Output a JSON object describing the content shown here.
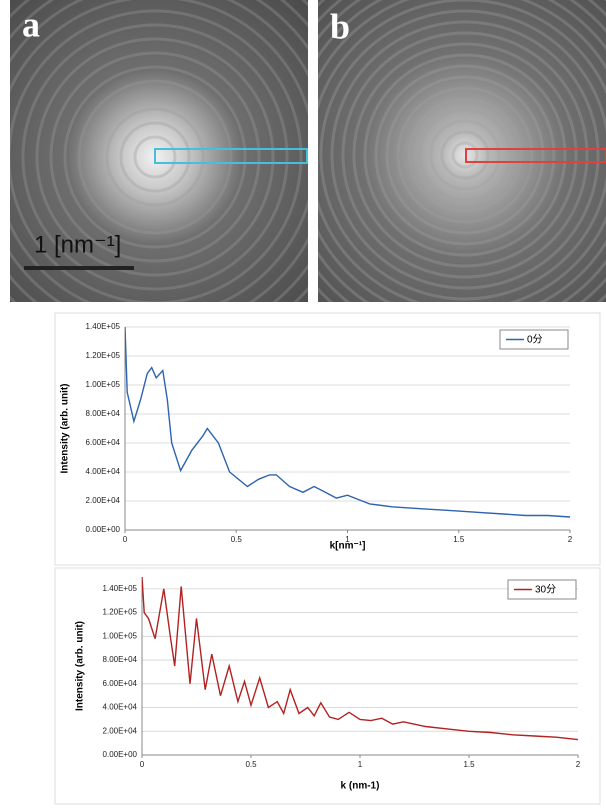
{
  "panels": [
    {
      "label": "a",
      "scale_bar": "1 [nm⁻¹]"
    },
    {
      "label": "b"
    }
  ],
  "chart_data": [
    {
      "type": "line",
      "x_label": "k[nm⁻¹]",
      "y_label": "Intensity (arb. unit)",
      "x": [
        0,
        0.01,
        0.04,
        0.07,
        0.1,
        0.12,
        0.14,
        0.17,
        0.19,
        0.21,
        0.25,
        0.3,
        0.35,
        0.37,
        0.42,
        0.47,
        0.55,
        0.6,
        0.65,
        0.68,
        0.74,
        0.8,
        0.85,
        0.9,
        0.95,
        1.0,
        1.05,
        1.1,
        1.2,
        1.3,
        1.4,
        1.5,
        1.6,
        1.7,
        1.8,
        1.9,
        2.0
      ],
      "series": [
        {
          "name": "0分",
          "color": "#2e63b0",
          "values": [
            140000,
            95000,
            75000,
            90000,
            108000,
            112000,
            105000,
            110000,
            90000,
            60000,
            41000,
            55000,
            65000,
            70000,
            60000,
            40000,
            30000,
            35000,
            38000,
            38000,
            30000,
            26000,
            30000,
            26000,
            22000,
            24000,
            21000,
            18000,
            16000,
            15000,
            14000,
            13000,
            12000,
            11000,
            10000,
            10000,
            9000
          ]
        }
      ],
      "xlim": [
        0,
        2
      ],
      "ylim": [
        0,
        140000
      ],
      "xticks": [
        0,
        0.5,
        1,
        1.5,
        2
      ],
      "yticks": [
        {
          "value": 0,
          "label": "0.00E+00"
        },
        {
          "value": 20000,
          "label": "2.00E+04"
        },
        {
          "value": 40000,
          "label": "4.00E+04"
        },
        {
          "value": 60000,
          "label": "6.00E+04"
        },
        {
          "value": 80000,
          "label": "8.00E+04"
        },
        {
          "value": 100000,
          "label": "1.00E+05"
        },
        {
          "value": 120000,
          "label": "1.20E+05"
        },
        {
          "value": 140000,
          "label": "1.40E+05"
        }
      ],
      "grid": true,
      "legend": "top-right"
    },
    {
      "type": "line",
      "x_label": "k (nm-1)",
      "y_label": "Intensity (arb. unit)",
      "x": [
        0,
        0.01,
        0.03,
        0.06,
        0.1,
        0.13,
        0.15,
        0.18,
        0.22,
        0.25,
        0.29,
        0.32,
        0.36,
        0.4,
        0.44,
        0.47,
        0.5,
        0.54,
        0.58,
        0.62,
        0.65,
        0.68,
        0.72,
        0.76,
        0.79,
        0.82,
        0.86,
        0.9,
        0.95,
        1.0,
        1.05,
        1.1,
        1.15,
        1.2,
        1.3,
        1.4,
        1.5,
        1.6,
        1.7,
        1.8,
        1.9,
        2.0
      ],
      "series": [
        {
          "name": "30分",
          "color": "#b22222",
          "values": [
            150000,
            120000,
            115000,
            98000,
            140000,
            100000,
            75000,
            142000,
            60000,
            115000,
            55000,
            85000,
            50000,
            75000,
            45000,
            62000,
            42000,
            65000,
            40000,
            45000,
            35000,
            55000,
            35000,
            40000,
            33000,
            44000,
            32000,
            30000,
            36000,
            30000,
            29000,
            31000,
            26000,
            28000,
            24000,
            22000,
            20000,
            19000,
            17000,
            16000,
            15000,
            13000
          ]
        }
      ],
      "xlim": [
        0,
        2
      ],
      "ylim": [
        0,
        150000
      ],
      "xticks": [
        0,
        0.5,
        1,
        1.5,
        2
      ],
      "yticks": [
        {
          "value": 0,
          "label": "0.00E+00"
        },
        {
          "value": 20000,
          "label": "2.00E+04"
        },
        {
          "value": 40000,
          "label": "4.00E+04"
        },
        {
          "value": 60000,
          "label": "6.00E+04"
        },
        {
          "value": 80000,
          "label": "8.00E+04"
        },
        {
          "value": 100000,
          "label": "1.00E+05"
        },
        {
          "value": 120000,
          "label": "1.20E+05"
        },
        {
          "value": 140000,
          "label": "1.40E+05"
        }
      ],
      "grid": true,
      "legend": "top-right"
    }
  ]
}
